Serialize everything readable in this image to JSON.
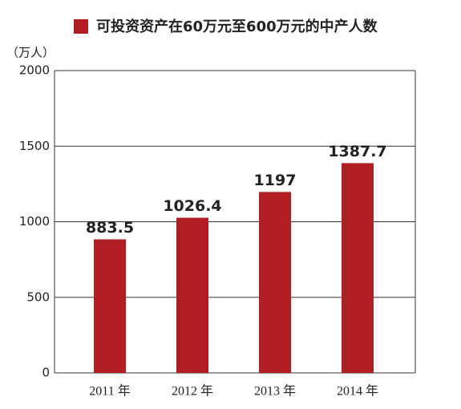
{
  "chart_data": {
    "type": "bar",
    "y_label": "（万人）",
    "categories": [
      "2011 年",
      "2012 年",
      "2013 年",
      "2014 年"
    ],
    "series": [
      {
        "name": "可投资资产在60万元至600万元的中产人数",
        "color": "#b01e23",
        "values": [
          883.5,
          1026.4,
          1197,
          1387.7
        ]
      }
    ],
    "ylim": [
      0,
      2000
    ],
    "yticks": [
      0,
      500,
      1000,
      1500,
      2000
    ],
    "grid": true
  }
}
